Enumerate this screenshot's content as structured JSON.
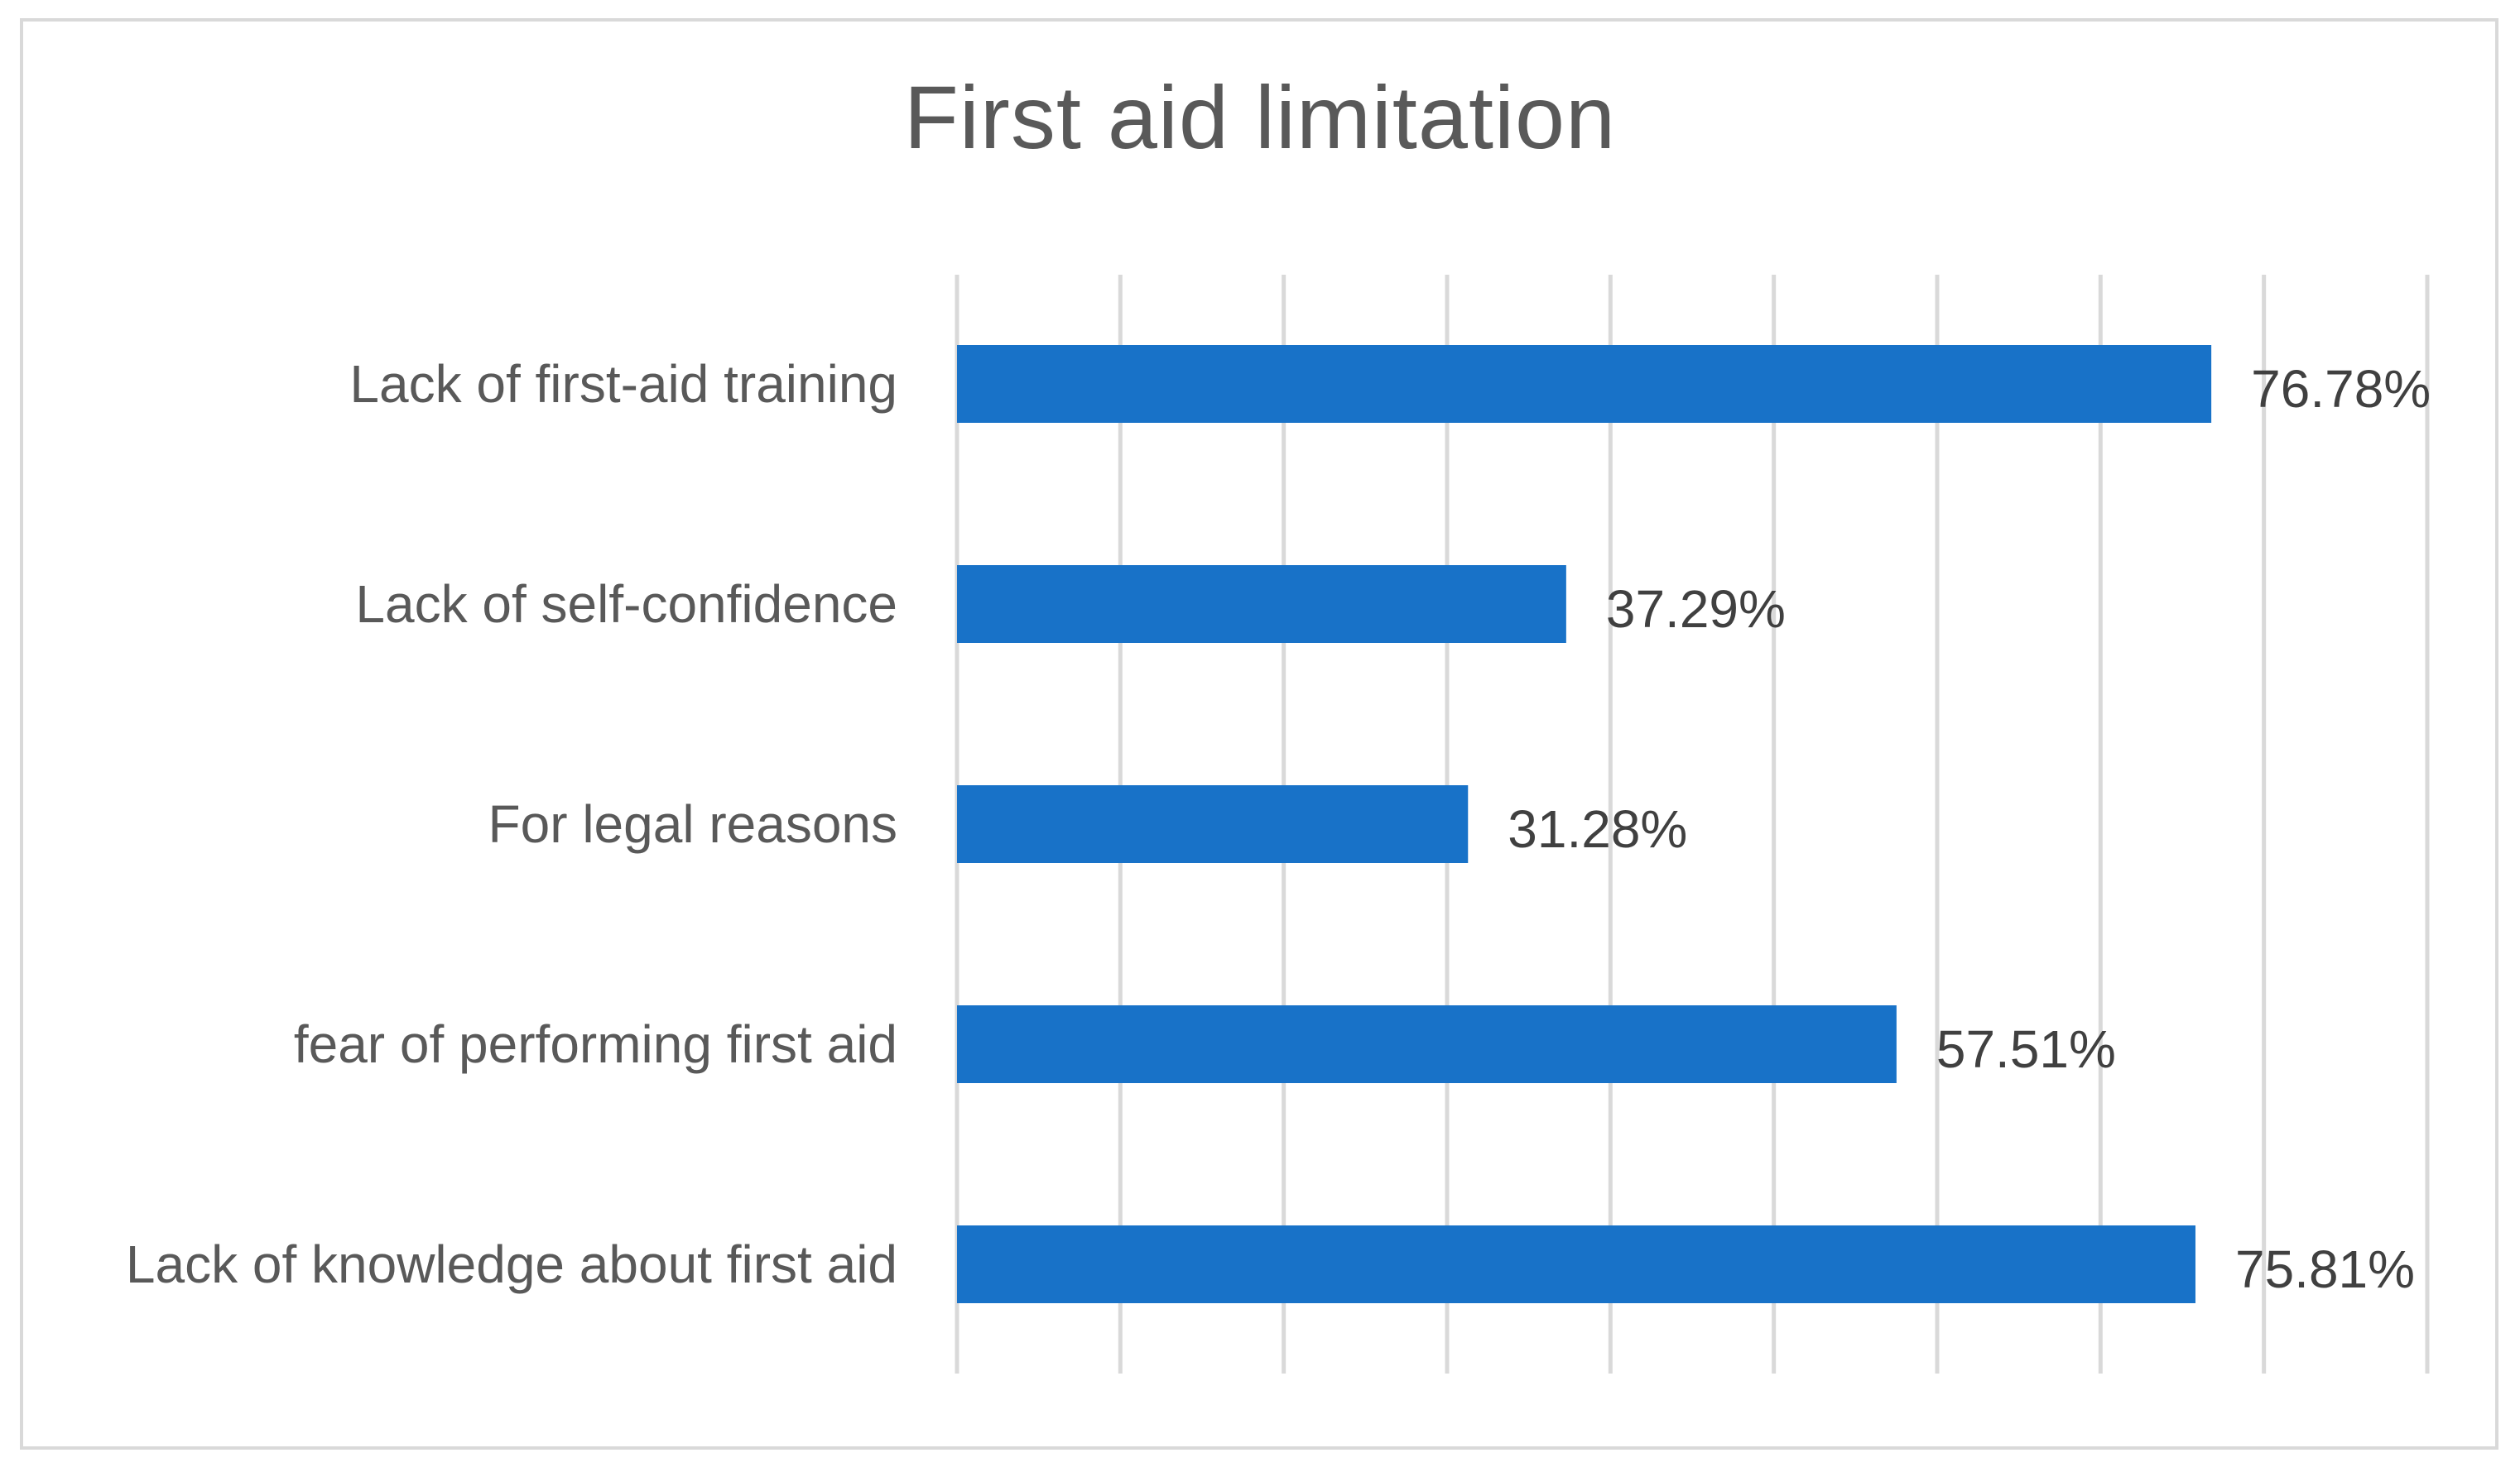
{
  "chart_data": {
    "type": "bar",
    "orientation": "horizontal",
    "title": "First aid limitation",
    "categories": [
      "Lack of first-aid training",
      "Lack of self-confidence",
      "For legal reasons",
      "fear of performing first aid",
      "Lack of knowledge about first aid"
    ],
    "values": [
      76.78,
      37.29,
      31.28,
      57.51,
      75.81
    ],
    "data_labels": [
      "76.78%",
      "37.29%",
      "31.28%",
      "57.51%",
      "75.81%"
    ],
    "xlim": [
      0,
      90
    ],
    "x_gridline_step": 10,
    "grid": true,
    "bar_color": "#1872C8",
    "gridline_color": "#d9d9d9",
    "xlabel": "",
    "ylabel": ""
  }
}
